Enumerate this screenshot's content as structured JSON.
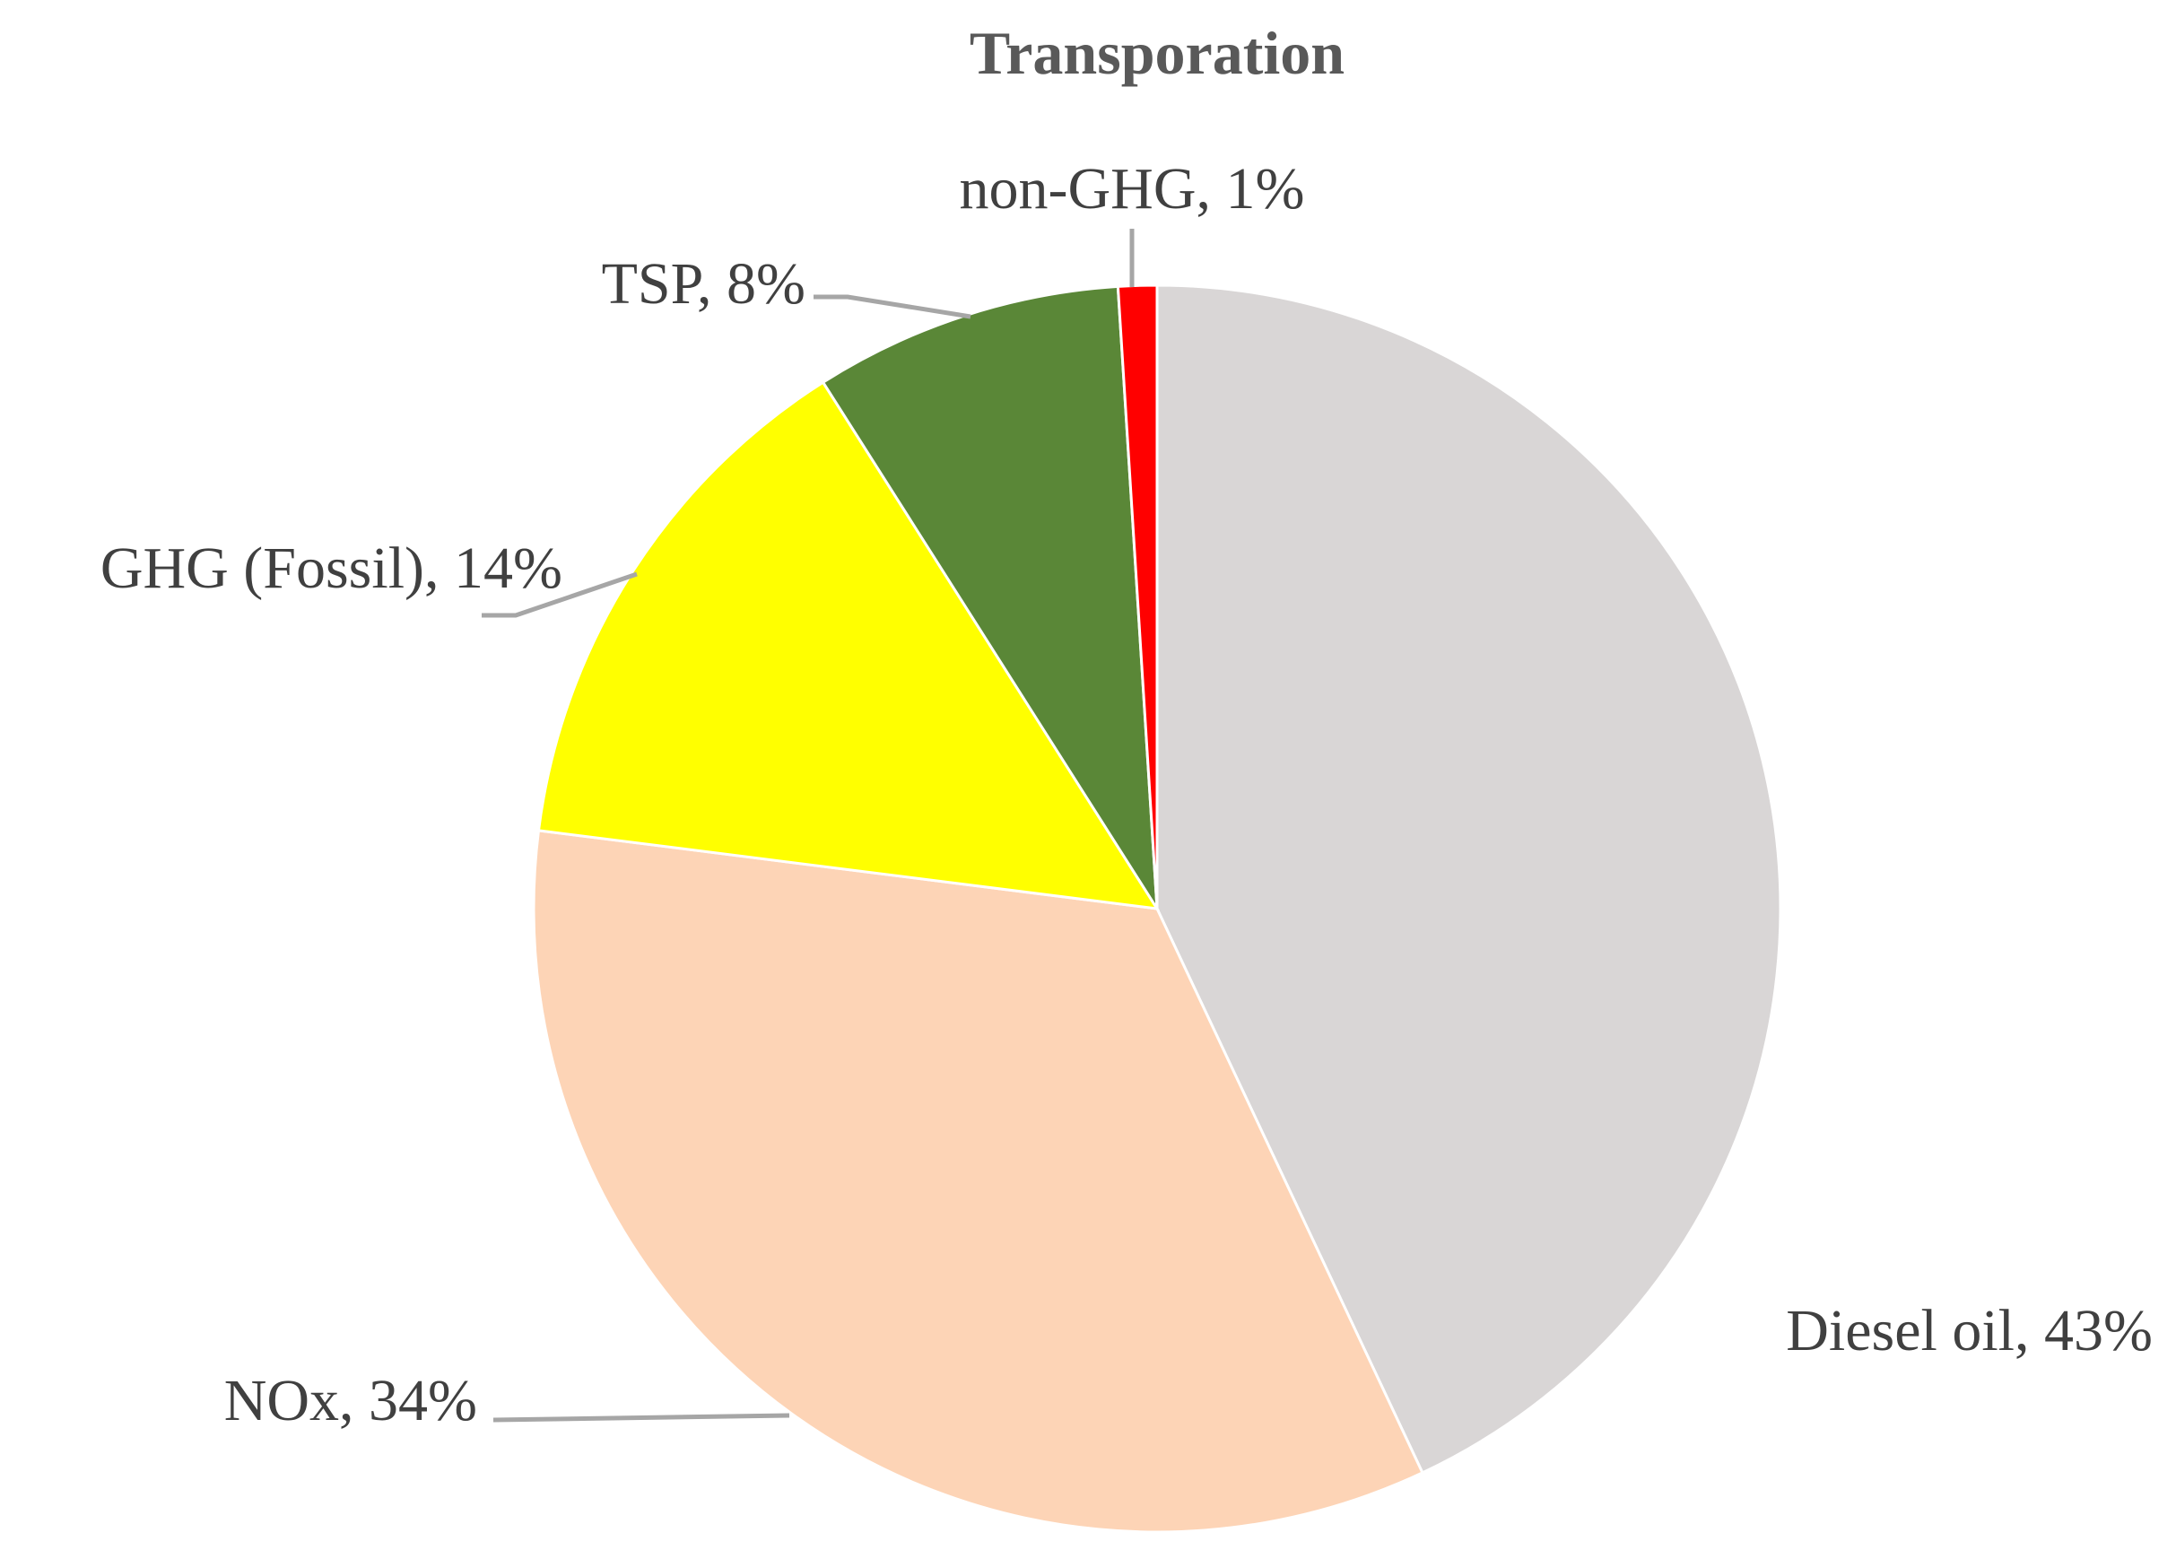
{
  "chart_data": {
    "type": "pie",
    "title": "Transporation",
    "start_angle_deg": 0,
    "direction": "clockwise",
    "slices": [
      {
        "name": "Diesel oil",
        "value": 43,
        "label": "Diesel oil, 43%",
        "color": "#d9d6d6"
      },
      {
        "name": "NOx",
        "value": 34,
        "label": "NOx, 34%",
        "color": "#fdd4b6"
      },
      {
        "name": "GHG (Fossil)",
        "value": 14,
        "label": "GHG (Fossil), 14%",
        "color": "#ffff00"
      },
      {
        "name": "TSP",
        "value": 8,
        "label": "TSP, 8%",
        "color": "#5a8737"
      },
      {
        "name": "non-GHG",
        "value": 1,
        "label": "non-GHG, 1%",
        "color": "#ff0000"
      }
    ],
    "legend": "none",
    "data_labels": "outside with leader lines"
  }
}
